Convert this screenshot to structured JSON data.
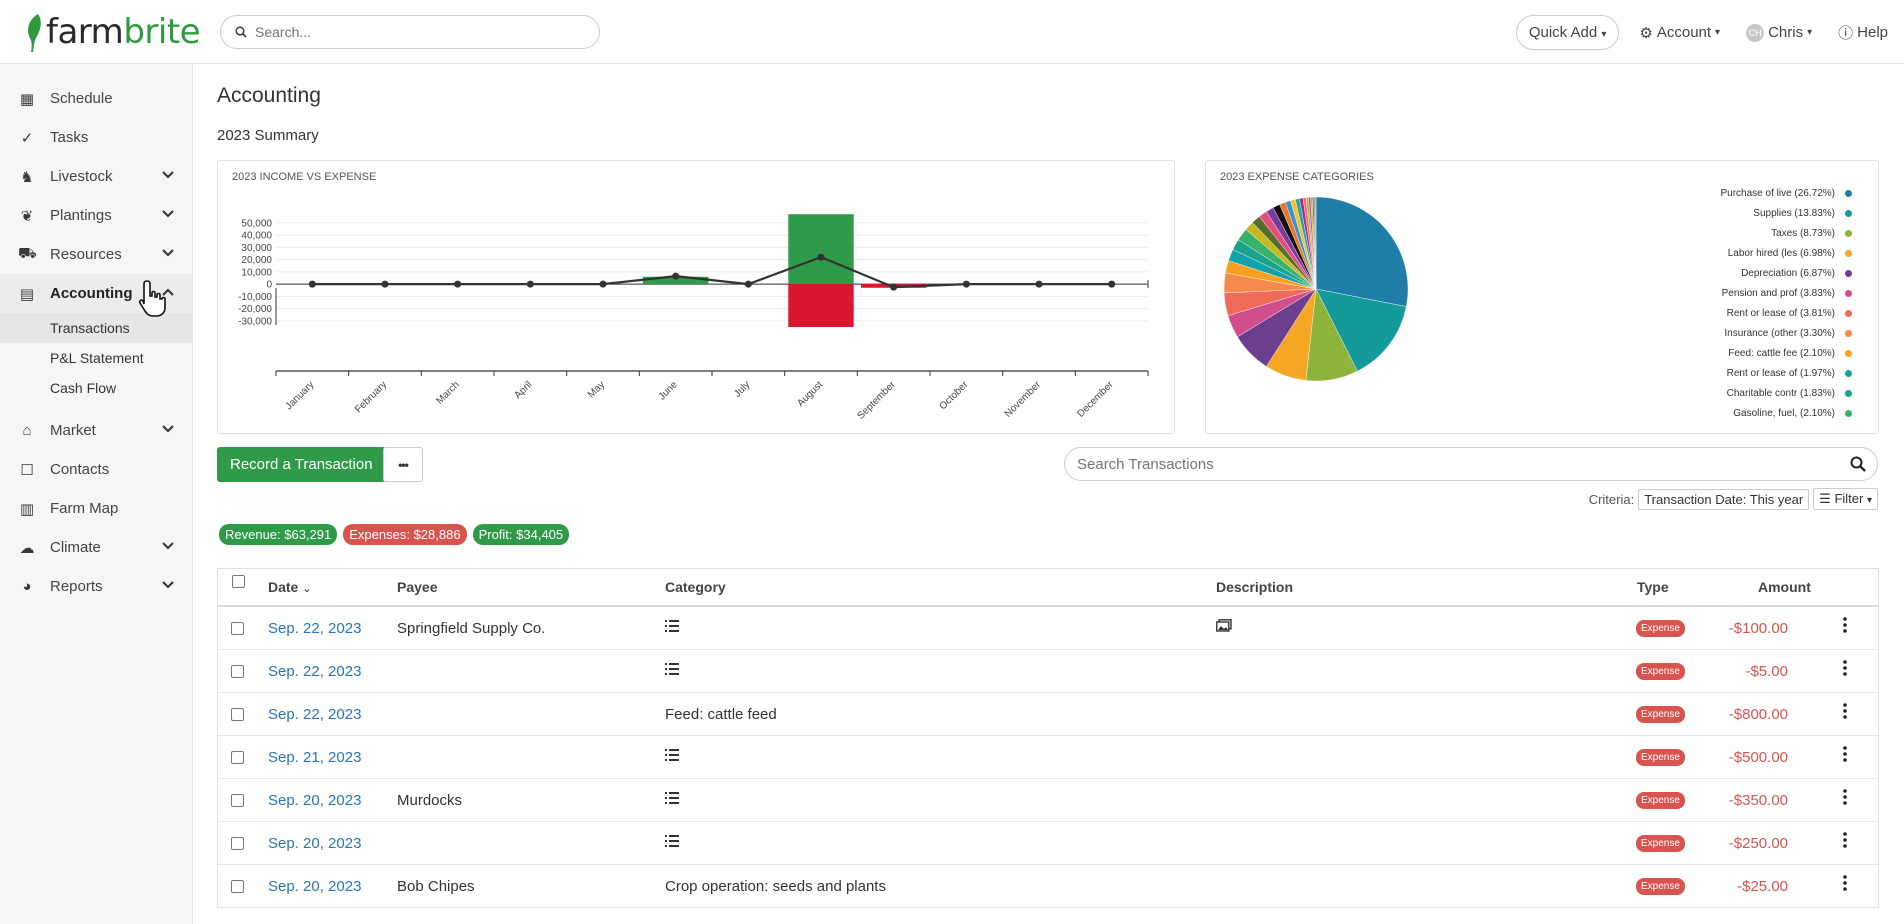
{
  "app": {
    "logo_text_prefix": "farm",
    "logo_text_suffix": "brite",
    "brand_color": "#2e9a3e"
  },
  "header": {
    "search_placeholder": "Search...",
    "quick_add": "Quick Add",
    "account": "Account",
    "user_initials": "CH",
    "user_name": "Chris",
    "help": "Help"
  },
  "sidebar": {
    "items": [
      {
        "label": "Schedule",
        "icon": "calendar-icon"
      },
      {
        "label": "Tasks",
        "icon": "check-circle-icon"
      },
      {
        "label": "Livestock",
        "icon": "horse-icon"
      },
      {
        "label": "Plantings",
        "icon": "seedling-icon"
      },
      {
        "label": "Resources",
        "icon": "tractor-icon"
      },
      {
        "label": "Accounting",
        "icon": "calculator-icon"
      },
      {
        "label": "Market",
        "icon": "store-icon"
      },
      {
        "label": "Contacts",
        "icon": "address-book-icon"
      },
      {
        "label": "Farm Map",
        "icon": "map-icon"
      },
      {
        "label": "Climate",
        "icon": "cloud-sun-icon"
      },
      {
        "label": "Reports",
        "icon": "pie-chart-icon"
      }
    ],
    "accounting_sub": [
      "Transactions",
      "P&L Statement",
      "Cash Flow"
    ]
  },
  "main": {
    "title": "Accounting",
    "summary_title": "2023 Summary",
    "record_button": "Record a Transaction",
    "more_button": "•••",
    "search_placeholder": "Search Transactions",
    "criteria_label": "Criteria:",
    "criteria_value": "Transaction Date: This year",
    "filter_label": "Filter",
    "badges": {
      "revenue": "Revenue: $63,291",
      "expenses": "Expenses: $28,886",
      "profit": "Profit: $34,405"
    }
  },
  "chart_data": [
    {
      "type": "bar",
      "title": "2023 INCOME VS EXPENSE",
      "categories": [
        "January",
        "February",
        "March",
        "April",
        "May",
        "June",
        "July",
        "August",
        "September",
        "October",
        "November",
        "December"
      ],
      "series": [
        {
          "name": "",
          "type": "bar",
          "color": "#2f9a48",
          "values": [
            0,
            0,
            0,
            0,
            0,
            6000,
            0,
            57000,
            0,
            0,
            0,
            0
          ]
        },
        {
          "name": "",
          "type": "bar",
          "color": "#d9172e",
          "values": [
            0,
            0,
            0,
            0,
            0,
            0,
            0,
            -35000,
            -3000,
            0,
            0,
            0
          ]
        },
        {
          "name": "",
          "type": "line",
          "color": "#333333",
          "values": [
            0,
            0,
            0,
            0,
            0,
            6500,
            0,
            22000,
            -2500,
            0,
            0,
            0
          ]
        }
      ],
      "y_ticks": [
        "50,000",
        "40,000",
        "30,000",
        "20,000",
        "10,000",
        "0",
        "-10,000",
        "-20,000",
        "-30,000"
      ],
      "ylim": [
        -35000,
        58000
      ]
    },
    {
      "type": "pie",
      "title": "2023 EXPENSE CATEGORIES",
      "slices": [
        {
          "label": "Purchase of live (26.72%)",
          "value": 26.72,
          "color": "#1f7ea8"
        },
        {
          "label": "Supplies (13.83%)",
          "value": 13.83,
          "color": "#159a9c"
        },
        {
          "label": "Taxes (8.73%)",
          "value": 8.73,
          "color": "#8db33a"
        },
        {
          "label": "Labor hired (les (6.98%)",
          "value": 6.98,
          "color": "#f5a623"
        },
        {
          "label": "Depreciation (6.87%)",
          "value": 6.87,
          "color": "#6b3f8e"
        },
        {
          "label": "Pension and prof (3.83%)",
          "value": 3.83,
          "color": "#d24d8c"
        },
        {
          "label": "Rent or lease of (3.81%)",
          "value": 3.81,
          "color": "#f06a5a"
        },
        {
          "label": "Insurance (other (3.30%)",
          "value": 3.3,
          "color": "#f58a4b"
        },
        {
          "label": "Feed: cattle fee (2.10%)",
          "value": 2.1,
          "color": "#f8a11f"
        },
        {
          "label": "Rent or lease of (1.97%)",
          "value": 1.97,
          "color": "#13a1ad"
        },
        {
          "label": "Charitable contr (1.83%)",
          "value": 1.83,
          "color": "#1aa38a"
        },
        {
          "label": "Gasoline, fuel, (2.10%)",
          "value": 2.1,
          "color": "#38b26a"
        },
        {
          "label": "",
          "value": 1.6,
          "color": "#c8b820"
        },
        {
          "label": "",
          "value": 1.5,
          "color": "#5a6b2e"
        },
        {
          "label": "",
          "value": 1.4,
          "color": "#e24f7e"
        },
        {
          "label": "",
          "value": 1.3,
          "color": "#7b3c9e"
        },
        {
          "label": "",
          "value": 1.2,
          "color": "#111111"
        },
        {
          "label": "",
          "value": 1.0,
          "color": "#e67a2a"
        },
        {
          "label": "",
          "value": 0.9,
          "color": "#3a8fd0"
        },
        {
          "label": "",
          "value": 0.8,
          "color": "#f2c12e"
        },
        {
          "label": "",
          "value": 0.7,
          "color": "#26a69a"
        },
        {
          "label": "",
          "value": 0.6,
          "color": "#9c27b0"
        },
        {
          "label": "",
          "value": 0.5,
          "color": "#ff7043"
        },
        {
          "label": "",
          "value": 0.4,
          "color": "#8bc34a"
        },
        {
          "label": "",
          "value": 0.35,
          "color": "#ab47bc"
        },
        {
          "label": "",
          "value": 0.3,
          "color": "#ffa000"
        },
        {
          "label": "",
          "value": 0.25,
          "color": "#00897b"
        },
        {
          "label": "",
          "value": 0.2,
          "color": "#607d8b"
        },
        {
          "label": "",
          "value": 0.15,
          "color": "#e53935"
        }
      ]
    }
  ],
  "table": {
    "headers": {
      "date": "Date",
      "payee": "Payee",
      "category": "Category",
      "description": "Description",
      "type": "Type",
      "amount": "Amount"
    },
    "rows": [
      {
        "date": "Sep. 22, 2023",
        "payee": "Springfield Supply Co.",
        "category": "",
        "category_icon": "list-icon",
        "description_icon": "images-icon",
        "type": "Expense",
        "amount": "-$100.00"
      },
      {
        "date": "Sep. 22, 2023",
        "payee": "",
        "category": "",
        "category_icon": "list-icon",
        "description_icon": "",
        "type": "Expense",
        "amount": "-$5.00"
      },
      {
        "date": "Sep. 22, 2023",
        "payee": "",
        "category": "Feed: cattle feed",
        "category_icon": "",
        "description_icon": "",
        "type": "Expense",
        "amount": "-$800.00"
      },
      {
        "date": "Sep. 21, 2023",
        "payee": "",
        "category": "",
        "category_icon": "list-icon",
        "description_icon": "",
        "type": "Expense",
        "amount": "-$500.00"
      },
      {
        "date": "Sep. 20, 2023",
        "payee": "Murdocks",
        "category": "",
        "category_icon": "list-icon",
        "description_icon": "",
        "type": "Expense",
        "amount": "-$350.00"
      },
      {
        "date": "Sep. 20, 2023",
        "payee": "",
        "category": "",
        "category_icon": "list-icon",
        "description_icon": "",
        "type": "Expense",
        "amount": "-$250.00"
      },
      {
        "date": "Sep. 20, 2023",
        "payee": "Bob Chipes",
        "category": "Crop operation: seeds and plants",
        "category_icon": "",
        "description_icon": "",
        "type": "Expense",
        "amount": "-$25.00"
      }
    ]
  }
}
